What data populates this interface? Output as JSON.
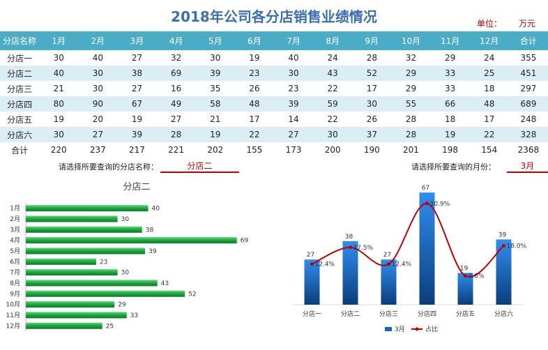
{
  "title": "2018年公司各分店销售业绩情况",
  "unit": {
    "label": "单位：",
    "value": "万元"
  },
  "table": {
    "headers": [
      "分店名称",
      "1月",
      "2月",
      "3月",
      "4月",
      "5月",
      "6月",
      "7月",
      "8月",
      "9月",
      "10月",
      "11月",
      "12月",
      "合计"
    ],
    "rows": [
      [
        "分店一",
        "30",
        "40",
        "27",
        "32",
        "30",
        "19",
        "40",
        "24",
        "28",
        "32",
        "29",
        "24",
        "355"
      ],
      [
        "分店二",
        "40",
        "30",
        "38",
        "69",
        "39",
        "23",
        "30",
        "43",
        "52",
        "29",
        "33",
        "25",
        "451"
      ],
      [
        "分店三",
        "21",
        "30",
        "27",
        "16",
        "35",
        "26",
        "23",
        "22",
        "17",
        "29",
        "33",
        "18",
        "297"
      ],
      [
        "分店四",
        "80",
        "90",
        "67",
        "49",
        "58",
        "48",
        "39",
        "59",
        "30",
        "55",
        "66",
        "48",
        "689"
      ],
      [
        "分店五",
        "19",
        "20",
        "19",
        "27",
        "21",
        "17",
        "14",
        "22",
        "26",
        "28",
        "18",
        "17",
        "248"
      ],
      [
        "分店六",
        "30",
        "27",
        "39",
        "28",
        "19",
        "22",
        "27",
        "30",
        "37",
        "28",
        "19",
        "22",
        "328"
      ]
    ],
    "total": [
      "合计",
      "220",
      "237",
      "217",
      "221",
      "202",
      "155",
      "173",
      "200",
      "190",
      "201",
      "198",
      "154",
      "2368"
    ]
  },
  "selectors": {
    "branch_label": "请选择所要查询的分店名称：",
    "branch_value": "分店二",
    "month_label": "请选择所要查询的月份：",
    "month_value": "3月"
  },
  "chart_data": [
    {
      "type": "bar",
      "orientation": "horizontal",
      "title": "分店二",
      "categories": [
        "1月",
        "2月",
        "3月",
        "4月",
        "5月",
        "6月",
        "7月",
        "8月",
        "9月",
        "10月",
        "11月",
        "12月"
      ],
      "values": [
        40,
        30,
        38,
        69,
        39,
        23,
        30,
        43,
        52,
        29,
        33,
        25
      ],
      "xlim": [
        0,
        80
      ],
      "color": "#19a53d",
      "grid": false
    },
    {
      "type": "bar",
      "title": "",
      "categories": [
        "分店一",
        "分店二",
        "分店三",
        "分店四",
        "分店五",
        "分店六"
      ],
      "series": [
        {
          "name": "3月",
          "kind": "bar",
          "values": [
            27,
            38,
            27,
            67,
            19,
            39
          ],
          "color": "#1565c0"
        },
        {
          "name": "占比",
          "kind": "line",
          "values": [
            12.4,
            17.5,
            12.4,
            30.9,
            8.8,
            18.0
          ],
          "labels": [
            "12.4%",
            "17.5%",
            "12.4%",
            "30.9%",
            "8.8%",
            "18.0%"
          ],
          "color": "#c00000"
        }
      ],
      "ylim": [
        0,
        80
      ],
      "legend": "bottom",
      "grid": false
    }
  ]
}
